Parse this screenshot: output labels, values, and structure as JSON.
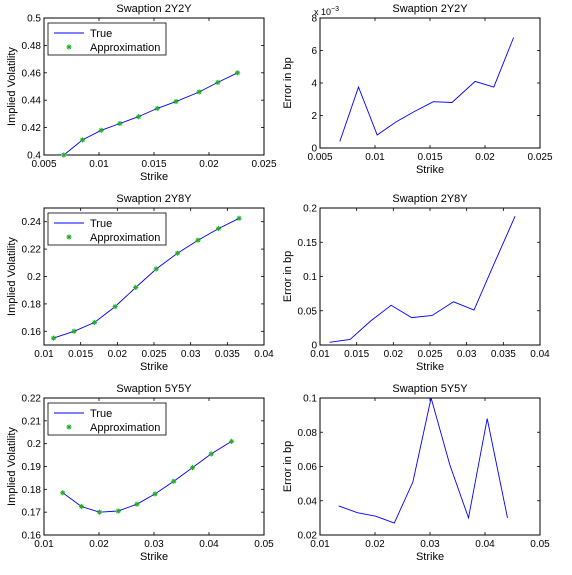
{
  "colors": {
    "true_line": "#0000ff",
    "approx_marker": "#1fae1f",
    "axes": "#000000",
    "background": "#ffffff"
  },
  "chart_data": [
    {
      "type": "line",
      "title": "Swaption 2Y2Y",
      "xlabel": "Strike",
      "ylabel": "Implied Volatility",
      "xlim": [
        0.005,
        0.025
      ],
      "ylim": [
        0.4,
        0.5
      ],
      "xticks": [
        0.005,
        0.01,
        0.015,
        0.02,
        0.025
      ],
      "yticks": [
        0.4,
        0.42,
        0.44,
        0.46,
        0.48,
        0.5
      ],
      "xtick_labels": [
        "0.005",
        "0.01",
        "0.015",
        "0.02",
        "0.025"
      ],
      "ytick_labels": [
        "0.4",
        "0.42",
        "0.44",
        "0.46",
        "0.48",
        "0.5"
      ],
      "legend": {
        "position": "top-left",
        "entries": [
          "True",
          "Approximation"
        ]
      },
      "x": [
        0.0068,
        0.0085,
        0.0102,
        0.0119,
        0.0136,
        0.0153,
        0.017,
        0.0191,
        0.0208,
        0.0226
      ],
      "series": [
        {
          "name": "True",
          "style": "line",
          "values": [
            0.4,
            0.411,
            0.418,
            0.423,
            0.428,
            0.434,
            0.439,
            0.446,
            0.453,
            0.46
          ]
        },
        {
          "name": "Approximation",
          "style": "markers",
          "values": [
            0.4,
            0.411,
            0.418,
            0.423,
            0.428,
            0.434,
            0.439,
            0.446,
            0.453,
            0.46
          ]
        }
      ]
    },
    {
      "type": "line",
      "title": "Swaption 2Y2Y",
      "xlabel": "Strike",
      "ylabel": "Error in bp",
      "xlim": [
        0.005,
        0.025
      ],
      "ylim": [
        0,
        8
      ],
      "y_multiplier": "x 10",
      "y_exponent": "−3",
      "xticks": [
        0.005,
        0.01,
        0.015,
        0.02,
        0.025
      ],
      "yticks": [
        0,
        2,
        4,
        6,
        8
      ],
      "xtick_labels": [
        "0.005",
        "0.01",
        "0.015",
        "0.02",
        "0.025"
      ],
      "ytick_labels": [
        "0",
        "2",
        "4",
        "6",
        "8"
      ],
      "x": [
        0.0068,
        0.0085,
        0.0102,
        0.0119,
        0.0136,
        0.0153,
        0.017,
        0.0191,
        0.0208,
        0.0226
      ],
      "series": [
        {
          "style": "line",
          "values": [
            0.4,
            3.75,
            0.8,
            1.6,
            2.25,
            2.85,
            2.8,
            4.1,
            3.75,
            6.8
          ]
        }
      ]
    },
    {
      "type": "line",
      "title": "Swaption 2Y8Y",
      "xlabel": "Strike",
      "ylabel": "Implied Volatility",
      "xlim": [
        0.01,
        0.04
      ],
      "ylim": [
        0.15,
        0.25
      ],
      "xticks": [
        0.01,
        0.015,
        0.02,
        0.025,
        0.03,
        0.035,
        0.04
      ],
      "yticks": [
        0.16,
        0.18,
        0.2,
        0.22,
        0.24
      ],
      "xtick_labels": [
        "0.01",
        "0.015",
        "0.02",
        "0.025",
        "0.03",
        "0.035",
        "0.04"
      ],
      "ytick_labels": [
        "0.16",
        "0.18",
        "0.2",
        "0.22",
        "0.24"
      ],
      "legend": {
        "position": "top-left",
        "entries": [
          "True",
          "Approximation"
        ]
      },
      "x": [
        0.0113,
        0.0141,
        0.0169,
        0.0197,
        0.0225,
        0.0253,
        0.0282,
        0.031,
        0.0338,
        0.0366
      ],
      "series": [
        {
          "name": "True",
          "style": "line",
          "values": [
            0.155,
            0.16,
            0.1665,
            0.178,
            0.192,
            0.2055,
            0.217,
            0.2265,
            0.235,
            0.2425
          ]
        },
        {
          "name": "Approximation",
          "style": "markers",
          "values": [
            0.155,
            0.16,
            0.1665,
            0.178,
            0.192,
            0.2055,
            0.217,
            0.2265,
            0.235,
            0.2425
          ]
        }
      ]
    },
    {
      "type": "line",
      "title": "Swaption 2Y8Y",
      "xlabel": "Strike",
      "ylabel": "Error in bp",
      "xlim": [
        0.01,
        0.04
      ],
      "ylim": [
        0,
        0.2
      ],
      "xticks": [
        0.01,
        0.015,
        0.02,
        0.025,
        0.03,
        0.035,
        0.04
      ],
      "yticks": [
        0,
        0.05,
        0.1,
        0.15,
        0.2
      ],
      "xtick_labels": [
        "0.01",
        "0.015",
        "0.02",
        "0.025",
        "0.03",
        "0.035",
        "0.04"
      ],
      "ytick_labels": [
        "0",
        "0.05",
        "0.1",
        "0.15",
        "0.2"
      ],
      "x": [
        0.0113,
        0.0141,
        0.0169,
        0.0197,
        0.0225,
        0.0253,
        0.0282,
        0.031,
        0.0338,
        0.0366
      ],
      "series": [
        {
          "style": "line",
          "values": [
            0.004,
            0.008,
            0.035,
            0.058,
            0.04,
            0.043,
            0.063,
            0.051,
            0.12,
            0.188
          ]
        }
      ]
    },
    {
      "type": "line",
      "title": "Swaption 5Y5Y",
      "xlabel": "Strike",
      "ylabel": "Implied Volatility",
      "xlim": [
        0.01,
        0.05
      ],
      "ylim": [
        0.16,
        0.22
      ],
      "xticks": [
        0.01,
        0.02,
        0.03,
        0.04,
        0.05
      ],
      "yticks": [
        0.16,
        0.17,
        0.18,
        0.19,
        0.2,
        0.21,
        0.22
      ],
      "xtick_labels": [
        "0.01",
        "0.02",
        "0.03",
        "0.04",
        "0.05"
      ],
      "ytick_labels": [
        "0.16",
        "0.17",
        "0.18",
        "0.19",
        "0.2",
        "0.21",
        "0.22"
      ],
      "legend": {
        "position": "top-left",
        "entries": [
          "True",
          "Approximation"
        ]
      },
      "x": [
        0.0134,
        0.0168,
        0.0201,
        0.0235,
        0.0269,
        0.0302,
        0.0336,
        0.037,
        0.0404,
        0.0441
      ],
      "series": [
        {
          "name": "True",
          "style": "line",
          "values": [
            0.1785,
            0.1725,
            0.17,
            0.1705,
            0.1735,
            0.178,
            0.1835,
            0.1895,
            0.1955,
            0.201
          ]
        },
        {
          "name": "Approximation",
          "style": "markers",
          "values": [
            0.1785,
            0.1725,
            0.17,
            0.1705,
            0.1735,
            0.178,
            0.1835,
            0.1895,
            0.1955,
            0.201
          ]
        }
      ]
    },
    {
      "type": "line",
      "title": "Swaption 5Y5Y",
      "xlabel": "Strike",
      "ylabel": "Error in bp",
      "xlim": [
        0.01,
        0.05
      ],
      "ylim": [
        0.02,
        0.1
      ],
      "xticks": [
        0.01,
        0.02,
        0.03,
        0.04,
        0.05
      ],
      "yticks": [
        0.02,
        0.04,
        0.06,
        0.08,
        0.1
      ],
      "xtick_labels": [
        "0.01",
        "0.02",
        "0.03",
        "0.04",
        "0.05"
      ],
      "ytick_labels": [
        "0.02",
        "0.04",
        "0.06",
        "0.08",
        "0.1"
      ],
      "x": [
        0.0134,
        0.0168,
        0.0201,
        0.0235,
        0.0269,
        0.0302,
        0.0336,
        0.037,
        0.0404,
        0.0441
      ],
      "series": [
        {
          "style": "line",
          "values": [
            0.037,
            0.033,
            0.031,
            0.027,
            0.051,
            0.1,
            0.061,
            0.03,
            0.088,
            0.03
          ]
        }
      ]
    }
  ]
}
